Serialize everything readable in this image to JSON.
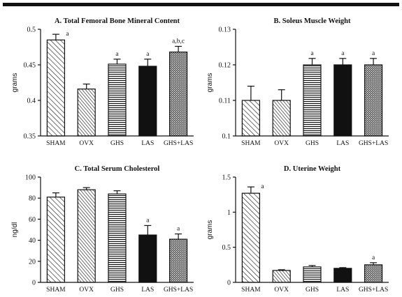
{
  "chart_data": [
    {
      "id": "A",
      "type": "bar",
      "title": "A. Total Femoral Bone Mineral Content",
      "ylabel": "grams",
      "xlabel": "",
      "ylim": [
        0.35,
        0.5
      ],
      "yticks": [
        "0.5",
        "0.45",
        "0.4",
        "0.35"
      ],
      "ytick_values": [
        0.5,
        0.45,
        0.4,
        0.35
      ],
      "categories": [
        "SHAM",
        "OVX",
        "GHS",
        "LAS",
        "GHS+LAS"
      ],
      "patterns": [
        "diag",
        "hatch-ovx",
        "horiz",
        "solid",
        "dots"
      ],
      "values": [
        0.485,
        0.416,
        0.451,
        0.448,
        0.468
      ],
      "errors": [
        0.008,
        0.007,
        0.007,
        0.01,
        0.008
      ],
      "annotations": [
        "a",
        "",
        "a",
        "a",
        "a,b,c"
      ]
    },
    {
      "id": "B",
      "type": "bar",
      "title": "B. Soleus Muscle Weight",
      "ylabel": "grams",
      "xlabel": "",
      "ylim": [
        0.1,
        0.13
      ],
      "yticks": [
        "0.13",
        "0.12",
        "0.11",
        "0.1"
      ],
      "ytick_values": [
        0.13,
        0.12,
        0.11,
        0.1
      ],
      "categories": [
        "SHAM",
        "OVX",
        "GHS",
        "LAS",
        "GHS+LAS"
      ],
      "patterns": [
        "diag",
        "hatch-ovx",
        "horiz",
        "solid",
        "dots"
      ],
      "values": [
        0.11,
        0.11,
        0.12,
        0.12,
        0.12
      ],
      "errors": [
        0.004,
        0.003,
        0.0018,
        0.0018,
        0.0018
      ],
      "annotations": [
        "",
        "",
        "a",
        "a",
        "a"
      ]
    },
    {
      "id": "C",
      "type": "bar",
      "title": "C. Total Serum Cholesterol",
      "ylabel": "ng/dl",
      "xlabel": "",
      "ylim": [
        0,
        100
      ],
      "yticks": [
        "100",
        "80",
        "60",
        "40",
        "20",
        "0"
      ],
      "ytick_values": [
        100,
        80,
        60,
        40,
        20,
        0
      ],
      "categories": [
        "SHAM",
        "OVX",
        "GHS",
        "LAS",
        "GHS+LAS"
      ],
      "patterns": [
        "diag",
        "hatch-ovx",
        "horiz",
        "solid",
        "dots"
      ],
      "values": [
        81,
        88,
        84,
        45,
        41
      ],
      "errors": [
        4,
        2,
        3,
        9,
        5
      ],
      "annotations": [
        "",
        "",
        "",
        "a",
        "a"
      ]
    },
    {
      "id": "D",
      "type": "bar",
      "title": "D. Uterine Weight",
      "ylabel": "grams",
      "xlabel": "",
      "ylim": [
        0,
        1.5
      ],
      "yticks": [
        "1.5",
        "1",
        "0.5",
        "0"
      ],
      "ytick_values": [
        1.5,
        1,
        0.5,
        0
      ],
      "categories": [
        "SHAM",
        "OVX",
        "GHS",
        "LAS",
        "GHS+LAS"
      ],
      "patterns": [
        "diag",
        "hatch-ovx",
        "horiz",
        "solid",
        "dots"
      ],
      "values": [
        1.27,
        0.17,
        0.22,
        0.2,
        0.25
      ],
      "errors": [
        0.09,
        0.01,
        0.02,
        0.01,
        0.03
      ],
      "annotations": [
        "a",
        "",
        "",
        "",
        "a"
      ]
    }
  ]
}
